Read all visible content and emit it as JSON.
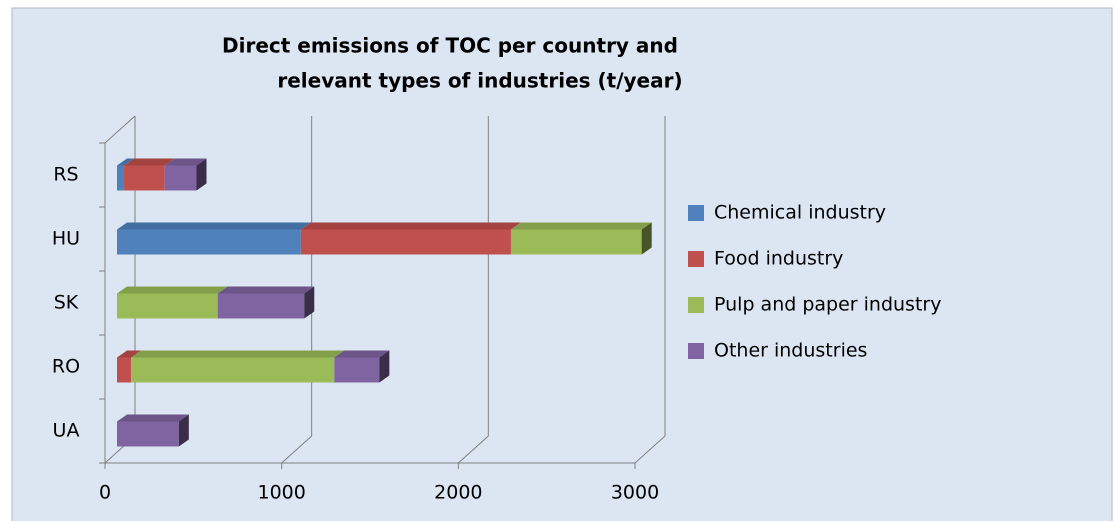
{
  "chart_data": {
    "type": "bar",
    "orientation": "horizontal",
    "stacked": true,
    "title": [
      "Direct emissions of TOC per country and",
      "relevant types of industries (t/year)"
    ],
    "categories": [
      "RS",
      "HU",
      "SK",
      "RO",
      "UA"
    ],
    "series": [
      {
        "name": "Chemical industry",
        "color": "#4f81bd",
        "values": [
          40,
          1040,
          null,
          null,
          null
        ]
      },
      {
        "name": "Food industry",
        "color": "#c0504d",
        "values": [
          230,
          1190,
          null,
          80,
          null
        ]
      },
      {
        "name": "Pulp and paper industry",
        "color": "#9bbb59",
        "values": [
          null,
          740,
          570,
          1150,
          null
        ]
      },
      {
        "name": "Other industries",
        "color": "#8064a2",
        "values": [
          180,
          null,
          490,
          255,
          350
        ]
      }
    ],
    "xlim": [
      0,
      3000
    ],
    "xticks": [
      0,
      1000,
      2000,
      3000
    ],
    "grid": true,
    "legend": "right"
  }
}
